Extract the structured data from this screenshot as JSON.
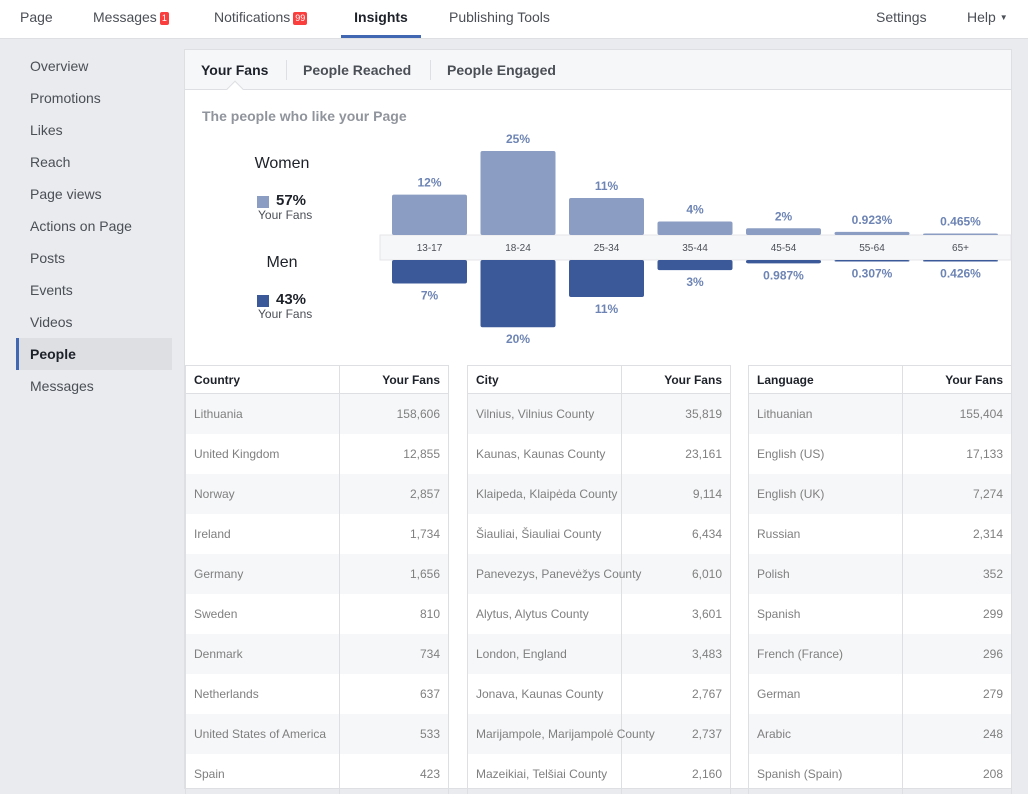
{
  "topnav": {
    "page": "Page",
    "messages": "Messages",
    "messages_badge": "1",
    "notifications": "Notifications",
    "notifications_badge": "99",
    "insights": "Insights",
    "publishing_tools": "Publishing Tools",
    "settings": "Settings",
    "help": "Help"
  },
  "sidebar": {
    "items": [
      "Overview",
      "Promotions",
      "Likes",
      "Reach",
      "Page views",
      "Actions on Page",
      "Posts",
      "Events",
      "Videos",
      "People",
      "Messages"
    ],
    "active": "People"
  },
  "tabs": [
    "Your Fans",
    "People Reached",
    "People Engaged"
  ],
  "chart_title": "The people who like your Page",
  "women": {
    "label": "Women",
    "pct": "57%",
    "sub": "Your Fans",
    "color": "#8b9dc3"
  },
  "men": {
    "label": "Men",
    "pct": "43%",
    "sub": "Your Fans",
    "color": "#3b5998"
  },
  "chart_data": {
    "type": "bar",
    "categories": [
      "13-17",
      "18-24",
      "25-34",
      "35-44",
      "45-54",
      "55-64",
      "65+"
    ],
    "series": [
      {
        "name": "Women",
        "values": [
          12,
          25,
          11,
          4,
          2,
          0.923,
          0.465
        ],
        "labels": [
          "12%",
          "25%",
          "11%",
          "4%",
          "2%",
          "0.923%",
          "0.465%"
        ]
      },
      {
        "name": "Men",
        "values": [
          7,
          20,
          11,
          3,
          0.987,
          0.307,
          0.426
        ],
        "labels": [
          "7%",
          "20%",
          "11%",
          "3%",
          "0.987%",
          "0.307%",
          "0.426%"
        ]
      }
    ],
    "ylim": [
      0,
      25
    ]
  },
  "tables": [
    {
      "col1": "Country",
      "col2": "Your Fans",
      "rows": [
        [
          "Lithuania",
          "158,606"
        ],
        [
          "United Kingdom",
          "12,855"
        ],
        [
          "Norway",
          "2,857"
        ],
        [
          "Ireland",
          "1,734"
        ],
        [
          "Germany",
          "1,656"
        ],
        [
          "Sweden",
          "810"
        ],
        [
          "Denmark",
          "734"
        ],
        [
          "Netherlands",
          "637"
        ],
        [
          "United States of America",
          "533"
        ],
        [
          "Spain",
          "423"
        ]
      ]
    },
    {
      "col1": "City",
      "col2": "Your Fans",
      "rows": [
        [
          "Vilnius, Vilnius County",
          "35,819"
        ],
        [
          "Kaunas, Kaunas County",
          "23,161"
        ],
        [
          "Klaipeda, Klaipėda County",
          "9,114"
        ],
        [
          "Šiauliai, Šiauliai County",
          "6,434"
        ],
        [
          "Panevezys, Panevėžys County",
          "6,010"
        ],
        [
          "Alytus, Alytus County",
          "3,601"
        ],
        [
          "London, England",
          "3,483"
        ],
        [
          "Jonava, Kaunas County",
          "2,767"
        ],
        [
          "Marijampole, Marijampolė County",
          "2,737"
        ],
        [
          "Mazeikiai, Telšiai County",
          "2,160"
        ]
      ]
    },
    {
      "col1": "Language",
      "col2": "Your Fans",
      "rows": [
        [
          "Lithuanian",
          "155,404"
        ],
        [
          "English (US)",
          "17,133"
        ],
        [
          "English (UK)",
          "7,274"
        ],
        [
          "Russian",
          "2,314"
        ],
        [
          "Polish",
          "352"
        ],
        [
          "Spanish",
          "299"
        ],
        [
          "French (France)",
          "296"
        ],
        [
          "German",
          "279"
        ],
        [
          "Arabic",
          "248"
        ],
        [
          "Spanish (Spain)",
          "208"
        ]
      ]
    }
  ]
}
